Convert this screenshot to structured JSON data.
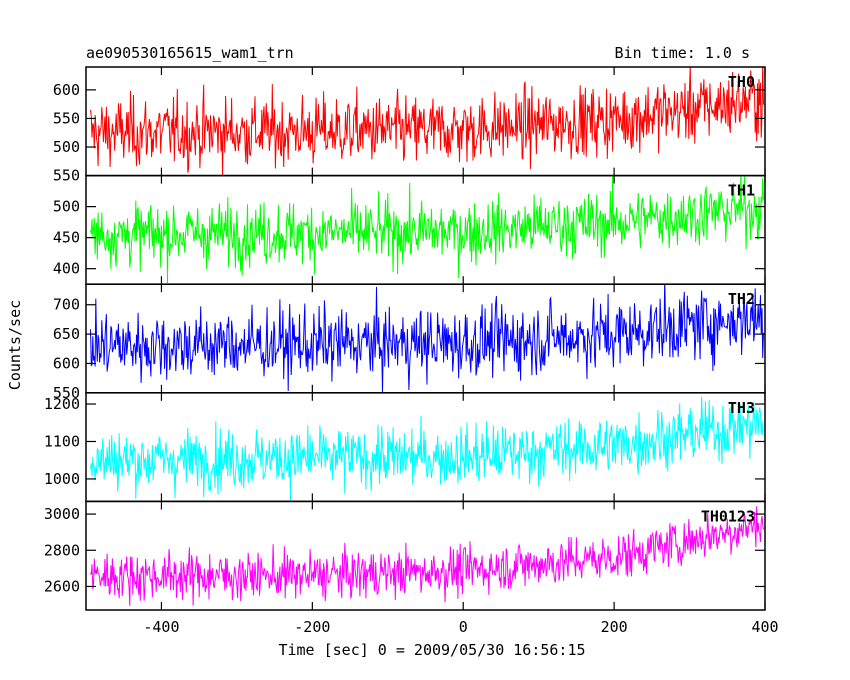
{
  "header": {
    "title_left": "ae090530165615_wam1_trn",
    "title_right": "Bin time: 1.0 s"
  },
  "chart_data": {
    "type": "line",
    "title": "ae090530165615_wam1_trn",
    "subtitle": "Bin time: 1.0 s",
    "xlabel": "Time [sec] 0 = 2009/05/30 16:56:15",
    "ylabel": "Counts/sec",
    "xlim": [
      -500,
      400
    ],
    "xticks": [
      -400,
      -200,
      0,
      200,
      400
    ],
    "x_step": 1.0,
    "grid": false,
    "panels": [
      {
        "name": "TH0",
        "color": "#ff0000",
        "ylim": [
          450,
          640
        ],
        "yticks": [
          500,
          550,
          600
        ],
        "trend": [
          {
            "x": -500,
            "y": 525
          },
          {
            "x": 0,
            "y": 530
          },
          {
            "x": 200,
            "y": 548
          },
          {
            "x": 400,
            "y": 585
          }
        ],
        "noise_sd": 30
      },
      {
        "name": "TH1",
        "color": "#00ff00",
        "ylim": [
          375,
          550
        ],
        "yticks": [
          400,
          450,
          500,
          550
        ],
        "trend": [
          {
            "x": -500,
            "y": 455
          },
          {
            "x": 0,
            "y": 460
          },
          {
            "x": 200,
            "y": 475
          },
          {
            "x": 400,
            "y": 500
          }
        ],
        "noise_sd": 25
      },
      {
        "name": "TH2",
        "color": "#0000ff",
        "ylim": [
          550,
          735
        ],
        "yticks": [
          550,
          600,
          650,
          700
        ],
        "trend": [
          {
            "x": -500,
            "y": 630
          },
          {
            "x": 0,
            "y": 635
          },
          {
            "x": 200,
            "y": 650
          },
          {
            "x": 400,
            "y": 680
          }
        ],
        "noise_sd": 30
      },
      {
        "name": "TH3",
        "color": "#00ffff",
        "ylim": [
          940,
          1230
        ],
        "yticks": [
          1000,
          1100,
          1200
        ],
        "trend": [
          {
            "x": -500,
            "y": 1050
          },
          {
            "x": 0,
            "y": 1060
          },
          {
            "x": 200,
            "y": 1090
          },
          {
            "x": 400,
            "y": 1150
          }
        ],
        "noise_sd": 40
      },
      {
        "name": "TH0123",
        "color": "#ff00ff",
        "ylim": [
          2470,
          3070
        ],
        "yticks": [
          2600,
          2800,
          3000
        ],
        "trend": [
          {
            "x": -500,
            "y": 2660
          },
          {
            "x": -200,
            "y": 2660
          },
          {
            "x": 0,
            "y": 2690
          },
          {
            "x": 200,
            "y": 2760
          },
          {
            "x": 400,
            "y": 2950
          }
        ],
        "noise_sd": 65
      }
    ]
  }
}
